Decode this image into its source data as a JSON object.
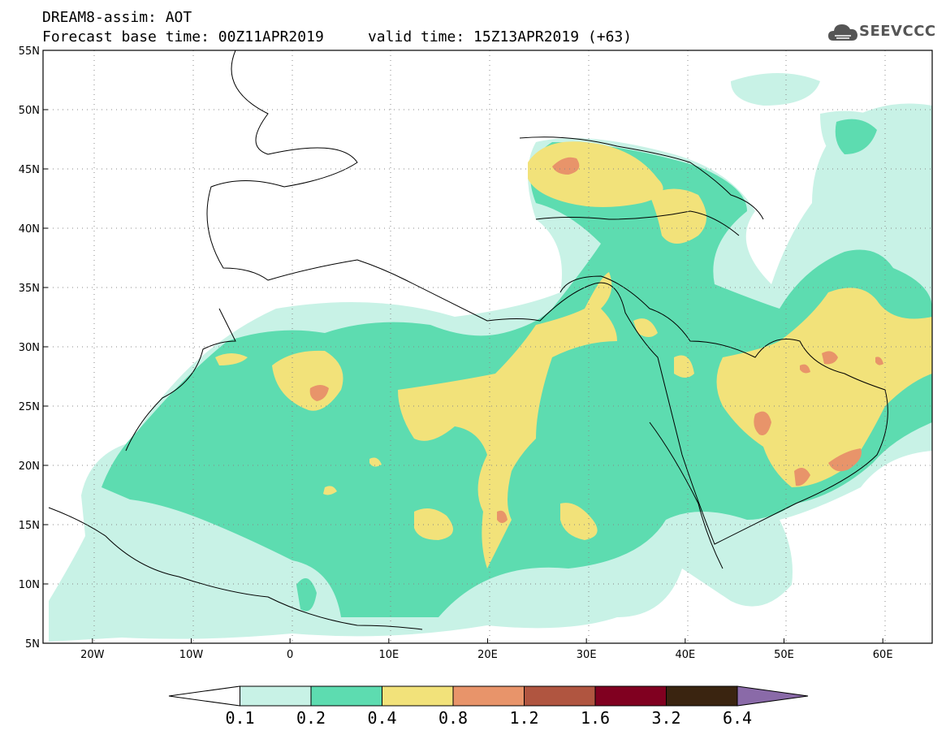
{
  "title": {
    "line1": "DREAM8-assim: AOT",
    "base_time_label": "Forecast base time: 00Z11APR2019",
    "valid_time_label": "valid time: 15Z13APR2019 (+63)"
  },
  "logo": {
    "text": "SEEVCCC",
    "icon": "cloud-icon"
  },
  "map": {
    "lon_range": [
      -25,
      65
    ],
    "lat_range": [
      5,
      55
    ],
    "lat_ticks": [
      "55N",
      "50N",
      "45N",
      "40N",
      "35N",
      "30N",
      "25N",
      "20N",
      "15N",
      "10N",
      "5N"
    ],
    "lon_ticks": [
      "20W",
      "10W",
      "0",
      "10E",
      "20E",
      "30E",
      "40E",
      "50E",
      "60E"
    ],
    "grid": "dotted"
  },
  "colorbar": {
    "labels": [
      "0.1",
      "0.2",
      "0.4",
      "0.8",
      "1.2",
      "1.6",
      "3.2",
      "6.4"
    ],
    "colors": [
      "#ffffff",
      "#c8f2e6",
      "#5ddcb0",
      "#f2e27a",
      "#e8946a",
      "#b05540",
      "#800020",
      "#3a2410",
      "#8a6aa8"
    ]
  }
}
